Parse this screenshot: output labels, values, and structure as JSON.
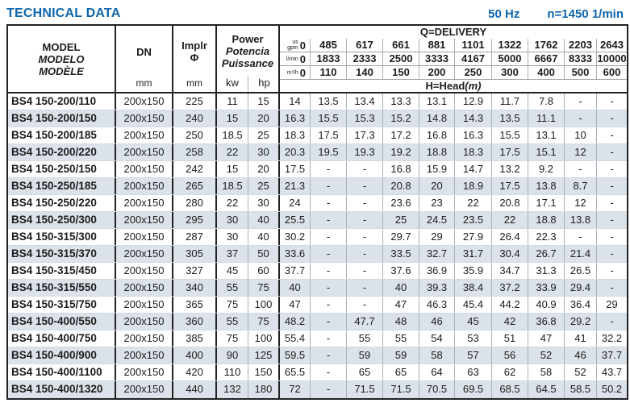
{
  "title": "TECHNICAL DATA",
  "frequency": "50 Hz",
  "speed": "n=1450 1/min",
  "colors": {
    "accent": "#0d66af",
    "stripe": "#dbe2e9",
    "border": "#222222"
  },
  "header": {
    "model_lines": [
      "MODEL",
      "MODELO",
      "MODÈLE"
    ],
    "dn_label": "DN",
    "dn_unit": "mm",
    "impeller_label": "Implr",
    "impeller_symbol": "Φ",
    "impeller_unit": "mm",
    "power_lines": [
      "Power",
      "Potencia",
      "Puissance"
    ],
    "power_unit_kw": "kw",
    "power_unit_hp": "hp",
    "delivery_title": "Q=DELIVERY",
    "head_title": "H=Head",
    "head_title_unit": "(m)",
    "unit_rows": [
      {
        "label": "us gpm",
        "values": [
          "0",
          "485",
          "617",
          "661",
          "881",
          "1101",
          "1322",
          "1762",
          "2203",
          "2643"
        ]
      },
      {
        "label": "l/min",
        "values": [
          "0",
          "1833",
          "2333",
          "2500",
          "3333",
          "4167",
          "5000",
          "6667",
          "8333",
          "10000"
        ]
      },
      {
        "label": "m³/h",
        "values": [
          "0",
          "110",
          "140",
          "150",
          "200",
          "250",
          "300",
          "400",
          "500",
          "600"
        ]
      }
    ]
  },
  "rows": [
    {
      "model": "BS4 150-200/110",
      "dn": "200x150",
      "impeller": "225",
      "kw": "11",
      "hp": "15",
      "head": [
        "14",
        "13.5",
        "13.4",
        "13.3",
        "13.1",
        "12.9",
        "11.7",
        "7.8",
        "-",
        "-"
      ]
    },
    {
      "model": "BS4 150-200/150",
      "dn": "200x150",
      "impeller": "240",
      "kw": "15",
      "hp": "20",
      "head": [
        "16.3",
        "15.5",
        "15.3",
        "15.2",
        "14.8",
        "14.3",
        "13.5",
        "11.1",
        "-",
        "-"
      ]
    },
    {
      "model": "BS4 150-200/185",
      "dn": "200x150",
      "impeller": "250",
      "kw": "18.5",
      "hp": "25",
      "head": [
        "18.3",
        "17.5",
        "17.3",
        "17.2",
        "16.8",
        "16.3",
        "15.5",
        "13.1",
        "10",
        "-"
      ]
    },
    {
      "model": "BS4 150-200/220",
      "dn": "200x150",
      "impeller": "258",
      "kw": "22",
      "hp": "30",
      "head": [
        "20.3",
        "19.5",
        "19.3",
        "19.2",
        "18.8",
        "18.3",
        "17.5",
        "15.1",
        "12",
        "-"
      ]
    },
    {
      "model": "BS4 150-250/150",
      "dn": "200x150",
      "impeller": "242",
      "kw": "15",
      "hp": "20",
      "head": [
        "17.5",
        "-",
        "-",
        "16.8",
        "15.9",
        "14.7",
        "13.2",
        "9.2",
        "-",
        "-"
      ]
    },
    {
      "model": "BS4 150-250/185",
      "dn": "200x150",
      "impeller": "265",
      "kw": "18.5",
      "hp": "25",
      "head": [
        "21.3",
        "-",
        "-",
        "20.8",
        "20",
        "18.9",
        "17.5",
        "13.8",
        "8.7",
        "-"
      ]
    },
    {
      "model": "BS4 150-250/220",
      "dn": "200x150",
      "impeller": "280",
      "kw": "22",
      "hp": "30",
      "head": [
        "24",
        "-",
        "-",
        "23.6",
        "23",
        "22",
        "20.8",
        "17.1",
        "12",
        "-"
      ]
    },
    {
      "model": "BS4 150-250/300",
      "dn": "200x150",
      "impeller": "295",
      "kw": "30",
      "hp": "40",
      "head": [
        "25.5",
        "-",
        "-",
        "25",
        "24.5",
        "23.5",
        "22",
        "18.8",
        "13.8",
        "-"
      ]
    },
    {
      "model": "BS4 150-315/300",
      "dn": "200x150",
      "impeller": "287",
      "kw": "30",
      "hp": "40",
      "head": [
        "30.2",
        "-",
        "-",
        "29.7",
        "29",
        "27.9",
        "26.4",
        "22.3",
        "-",
        "-"
      ]
    },
    {
      "model": "BS4 150-315/370",
      "dn": "200x150",
      "impeller": "305",
      "kw": "37",
      "hp": "50",
      "head": [
        "33.6",
        "-",
        "-",
        "33.5",
        "32.7",
        "31.7",
        "30.4",
        "26.7",
        "21.4",
        "-"
      ]
    },
    {
      "model": "BS4 150-315/450",
      "dn": "200x150",
      "impeller": "327",
      "kw": "45",
      "hp": "60",
      "head": [
        "37.7",
        "-",
        "-",
        "37.6",
        "36.9",
        "35.9",
        "34.7",
        "31.3",
        "26.5",
        "-"
      ]
    },
    {
      "model": "BS4 150-315/550",
      "dn": "200x150",
      "impeller": "340",
      "kw": "55",
      "hp": "75",
      "head": [
        "40",
        "-",
        "-",
        "40",
        "39.3",
        "38.4",
        "37.2",
        "33.9",
        "29.4",
        "-"
      ]
    },
    {
      "model": "BS4 150-315/750",
      "dn": "200x150",
      "impeller": "365",
      "kw": "75",
      "hp": "100",
      "head": [
        "47",
        "-",
        "-",
        "47",
        "46.3",
        "45.4",
        "44.2",
        "40.9",
        "36.4",
        "29"
      ]
    },
    {
      "model": "BS4 150-400/550",
      "dn": "200x150",
      "impeller": "360",
      "kw": "55",
      "hp": "75",
      "head": [
        "48.2",
        "-",
        "47.7",
        "48",
        "46",
        "45",
        "42",
        "36.8",
        "29.2",
        "-"
      ]
    },
    {
      "model": "BS4 150-400/750",
      "dn": "200x150",
      "impeller": "385",
      "kw": "75",
      "hp": "100",
      "head": [
        "55.4",
        "-",
        "55",
        "55",
        "54",
        "53",
        "51",
        "47",
        "41",
        "32.2"
      ]
    },
    {
      "model": "BS4 150-400/900",
      "dn": "200x150",
      "impeller": "400",
      "kw": "90",
      "hp": "125",
      "head": [
        "59.5",
        "-",
        "59",
        "59",
        "58",
        "57",
        "56",
        "52",
        "46",
        "37.7"
      ]
    },
    {
      "model": "BS4 150-400/1100",
      "dn": "200x150",
      "impeller": "420",
      "kw": "110",
      "hp": "150",
      "head": [
        "65.5",
        "-",
        "65",
        "65",
        "64",
        "63",
        "62",
        "58",
        "52",
        "43.7"
      ]
    },
    {
      "model": "BS4 150-400/1320",
      "dn": "200x150",
      "impeller": "440",
      "kw": "132",
      "hp": "180",
      "head": [
        "72",
        "-",
        "71.5",
        "71.5",
        "70.5",
        "69.5",
        "68.5",
        "64.5",
        "58.5",
        "50.2"
      ]
    }
  ]
}
